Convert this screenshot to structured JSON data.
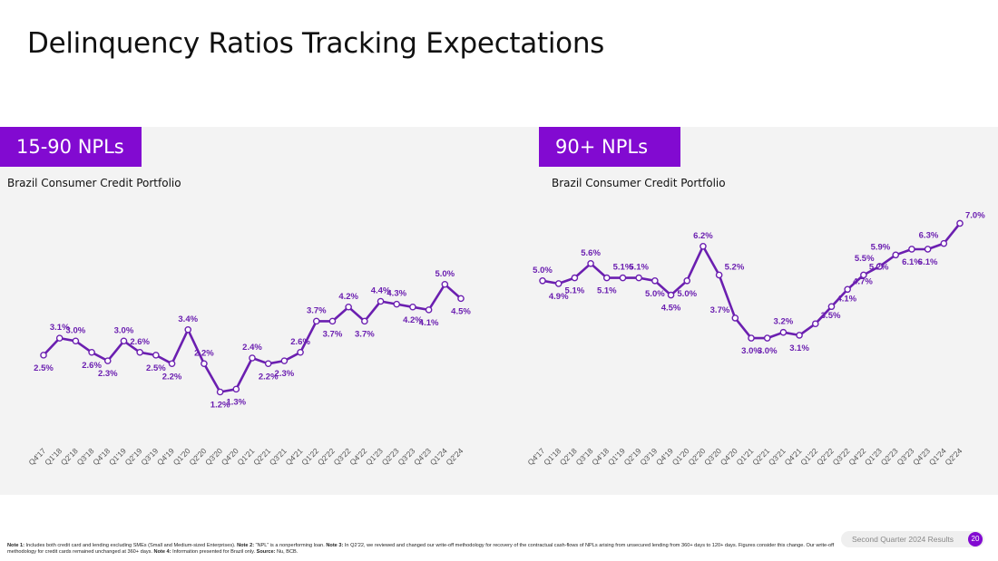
{
  "title": "Delinquency Ratios Tracking Expectations",
  "footnote": {
    "n1_label": "Note 1:",
    "n1_text": " Includes both credit card and lending excluding SMEs (Small and Medium-sized Enterprises). ",
    "n2_label": "Note 2:",
    "n2_text": " “NPL” is a nonperforming loan. ",
    "n3_label": "Note 3:",
    "n3_text": " In Q2’22, we reviewed and changed our write-off methodology for recovery of the contractual cash-flows of NPLs arising from unsecured lending from 360+ days to 120+ days. Figures consider this change. Our write-off methodology for credit cards remained unchanged at 360+ days. ",
    "n4_label": "Note 4:",
    "n4_text": " Information presented for Brazil only. ",
    "src_label": "Source:",
    "src_text": " Nu, BCB."
  },
  "badge": {
    "label": "Second Quarter 2024 Results",
    "page": "20"
  },
  "colors": {
    "accent": "#820ad1",
    "line": "#6b1fb0"
  },
  "chart_data": [
    {
      "type": "line",
      "tag": "15-90 NPLs",
      "title": "Brazil Consumer Credit Portfolio",
      "categories": [
        "Q4'17",
        "Q1'18",
        "Q2'18",
        "Q3'18",
        "Q4'18",
        "Q1'19",
        "Q2'19",
        "Q3'19",
        "Q4'19",
        "Q1'20",
        "Q2'20",
        "Q3'20",
        "Q4'20",
        "Q1'21",
        "Q2'21",
        "Q3'21",
        "Q4'21",
        "Q1'22",
        "Q2'22",
        "Q3'22",
        "Q4'22",
        "Q1'23",
        "Q2'23",
        "Q3'23",
        "Q4'23",
        "Q1'24",
        "Q2'24"
      ],
      "values": [
        2.5,
        3.1,
        3.0,
        2.6,
        2.3,
        3.0,
        2.6,
        2.5,
        2.2,
        3.4,
        2.2,
        1.2,
        1.3,
        2.4,
        2.2,
        2.3,
        2.6,
        3.7,
        3.7,
        4.2,
        3.7,
        4.4,
        4.3,
        4.2,
        4.1,
        5.0,
        4.5
      ],
      "labels": [
        "2.5%",
        "3.1%",
        "3.0%",
        "2.6%",
        "2.3%",
        "3.0%",
        "2.6%",
        "2.5%",
        "2.2%",
        "3.4%",
        "2.2%",
        "1.2%",
        "1.3%",
        "2.4%",
        "2.2%",
        "2.3%",
        "2.6%",
        "3.7%",
        "3.7%",
        "4.2%",
        "3.7%",
        "4.4%",
        "4.3%",
        "4.2%",
        "4.1%",
        "5.0%",
        "4.5%"
      ],
      "label_pos": [
        "below",
        "above",
        "above",
        "below",
        "below",
        "above",
        "above",
        "below",
        "below",
        "above",
        "above",
        "below",
        "below",
        "above",
        "below",
        "below",
        "above",
        "above",
        "below",
        "above",
        "below",
        "above",
        "above",
        "below",
        "below",
        "above",
        "below"
      ],
      "grid": false,
      "legend": "none"
    },
    {
      "type": "line",
      "tag": "90+ NPLs",
      "title": "Brazil Consumer Credit Portfolio",
      "categories": [
        "Q4'17",
        "Q1'18",
        "Q2'18",
        "Q3'18",
        "Q4'18",
        "Q1'19",
        "Q2'19",
        "Q3'19",
        "Q4'19",
        "Q1'20",
        "Q2'20",
        "Q3'20",
        "Q4'20",
        "Q1'21",
        "Q2'21",
        "Q3'21",
        "Q4'21",
        "Q1'22",
        "Q2'22",
        "Q3'22",
        "Q4'22",
        "Q1'23",
        "Q2'23",
        "Q3'23",
        "Q4'23",
        "Q1'24",
        "Q2'24"
      ],
      "values": [
        5.0,
        4.9,
        5.1,
        5.6,
        5.1,
        5.1,
        5.1,
        5.0,
        4.5,
        5.0,
        6.2,
        5.2,
        3.7,
        3.0,
        3.0,
        3.2,
        3.1,
        3.5,
        4.1,
        4.7,
        5.2,
        5.5,
        5.9,
        6.1,
        6.1,
        6.3,
        7.0
      ],
      "labels": [
        "5.0%",
        "4.9%",
        "5.1%",
        "5.6%",
        "5.1%",
        "5.1%",
        "5.1%",
        "5.0%",
        "4.5%",
        "5.0%",
        "6.2%",
        "5.2%",
        "3.7%",
        "3.0%",
        "3.0%",
        "3.2%",
        "3.1%",
        "3.5%",
        "4.1%",
        "4.7%",
        "5.2%",
        "5.5%",
        "5.9%",
        "6.1%",
        "6.1%",
        "6.3%",
        "7.0%"
      ],
      "label_pos": [
        "above",
        "below",
        "below",
        "above",
        "below",
        "above",
        "above",
        "below",
        "below",
        "below",
        "above",
        "right",
        "left",
        "below",
        "below",
        "above",
        "below",
        "right",
        "right",
        "right",
        "right",
        "left",
        "left",
        "below",
        "below",
        "left",
        "right"
      ],
      "grid": false,
      "legend": "none"
    }
  ]
}
